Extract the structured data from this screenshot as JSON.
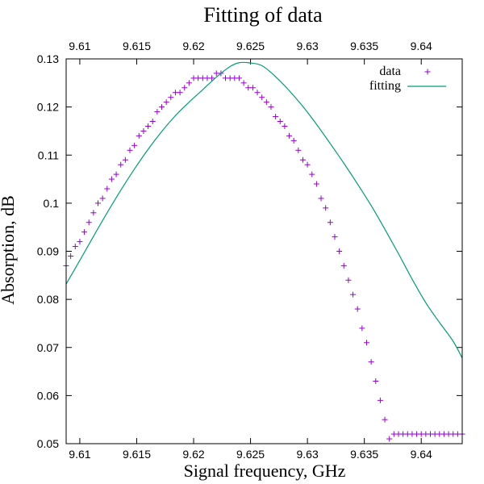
{
  "chart_data": {
    "type": "scatter",
    "title": "Fitting of data",
    "xlabel": "Signal frequency, GHz",
    "ylabel": "Absorption, dB",
    "xlim": [
      9.6088,
      9.6436
    ],
    "ylim": [
      0.05,
      0.13
    ],
    "xticks": [
      "9.61",
      "9.615",
      "9.62",
      "9.625",
      "9.63",
      "9.635",
      "9.64"
    ],
    "yticks": [
      "0.05",
      "0.06",
      "0.07",
      "0.08",
      "0.09",
      "0.1",
      "0.11",
      "0.12",
      "0.13"
    ],
    "top_axis_ticks": true,
    "grid": false,
    "legend_position": "top-right",
    "series": [
      {
        "name": "data",
        "kind": "points",
        "marker": "plus",
        "color": "#9400d3",
        "x": [
          9.6088,
          9.6092,
          9.6096,
          9.61,
          9.6104,
          9.6108,
          9.6112,
          9.6116,
          9.612,
          9.6124,
          9.6128,
          9.6132,
          9.6136,
          9.614,
          9.6144,
          9.6148,
          9.6152,
          9.6156,
          9.616,
          9.6164,
          9.6168,
          9.6172,
          9.6176,
          9.618,
          9.6184,
          9.6188,
          9.6192,
          9.6196,
          9.62,
          9.6204,
          9.6208,
          9.6212,
          9.6216,
          9.622,
          9.6224,
          9.6228,
          9.6232,
          9.6236,
          9.624,
          9.6244,
          9.6248,
          9.6252,
          9.6256,
          9.626,
          9.6264,
          9.6268,
          9.6272,
          9.6276,
          9.628,
          9.6284,
          9.6288,
          9.6292,
          9.6296,
          9.63,
          9.6304,
          9.6308,
          9.6312,
          9.6316,
          9.632,
          9.6324,
          9.6328,
          9.6332,
          9.6336,
          9.634,
          9.6344,
          9.6348,
          9.6352,
          9.6356,
          9.636,
          9.6364,
          9.6368,
          9.6372,
          9.6376,
          9.638,
          9.6384,
          9.6388,
          9.6392,
          9.6396,
          9.64,
          9.6404,
          9.6408,
          9.6412,
          9.6416,
          9.642,
          9.6424,
          9.6428,
          9.6432,
          9.6436
        ],
        "y": [
          0.087,
          0.089,
          0.091,
          0.092,
          0.094,
          0.096,
          0.098,
          0.1,
          0.101,
          0.103,
          0.105,
          0.106,
          0.108,
          0.109,
          0.111,
          0.112,
          0.114,
          0.115,
          0.116,
          0.117,
          0.119,
          0.12,
          0.121,
          0.122,
          0.123,
          0.123,
          0.124,
          0.125,
          0.126,
          0.126,
          0.126,
          0.126,
          0.126,
          0.127,
          0.127,
          0.126,
          0.126,
          0.126,
          0.126,
          0.125,
          0.124,
          0.124,
          0.123,
          0.122,
          0.121,
          0.12,
          0.118,
          0.117,
          0.116,
          0.114,
          0.113,
          0.111,
          0.109,
          0.108,
          0.106,
          0.104,
          0.101,
          0.099,
          0.096,
          0.093,
          0.09,
          0.087,
          0.084,
          0.081,
          0.078,
          0.074,
          0.071,
          0.067,
          0.063,
          0.059,
          0.055,
          0.051,
          0.052,
          0.052,
          0.052,
          0.052,
          0.052,
          0.052,
          0.052,
          0.052,
          0.052,
          0.052,
          0.052,
          0.052,
          0.052,
          0.052,
          0.052,
          0.052
        ]
      },
      {
        "name": "fitting",
        "kind": "line",
        "color": "#009e73",
        "x": [
          9.6088,
          9.61,
          9.6112,
          9.6124,
          9.6136,
          9.6148,
          9.616,
          9.6172,
          9.6184,
          9.6196,
          9.6208,
          9.622,
          9.6232,
          9.624,
          9.6248,
          9.626,
          9.6272,
          9.6284,
          9.6296,
          9.6308,
          9.632,
          9.6332,
          9.6344,
          9.6356,
          9.6368,
          9.638,
          9.6392,
          9.6404,
          9.6416,
          9.6428,
          9.6436
        ],
        "y": [
          0.0832,
          0.0881,
          0.0931,
          0.098,
          0.1027,
          0.1071,
          0.1112,
          0.1149,
          0.1182,
          0.121,
          0.1236,
          0.1262,
          0.1284,
          0.1292,
          0.1292,
          0.1286,
          0.1263,
          0.1234,
          0.1201,
          0.1164,
          0.1124,
          0.1083,
          0.104,
          0.0995,
          0.0946,
          0.0895,
          0.0842,
          0.0793,
          0.0752,
          0.0713,
          0.0678
        ]
      }
    ]
  }
}
